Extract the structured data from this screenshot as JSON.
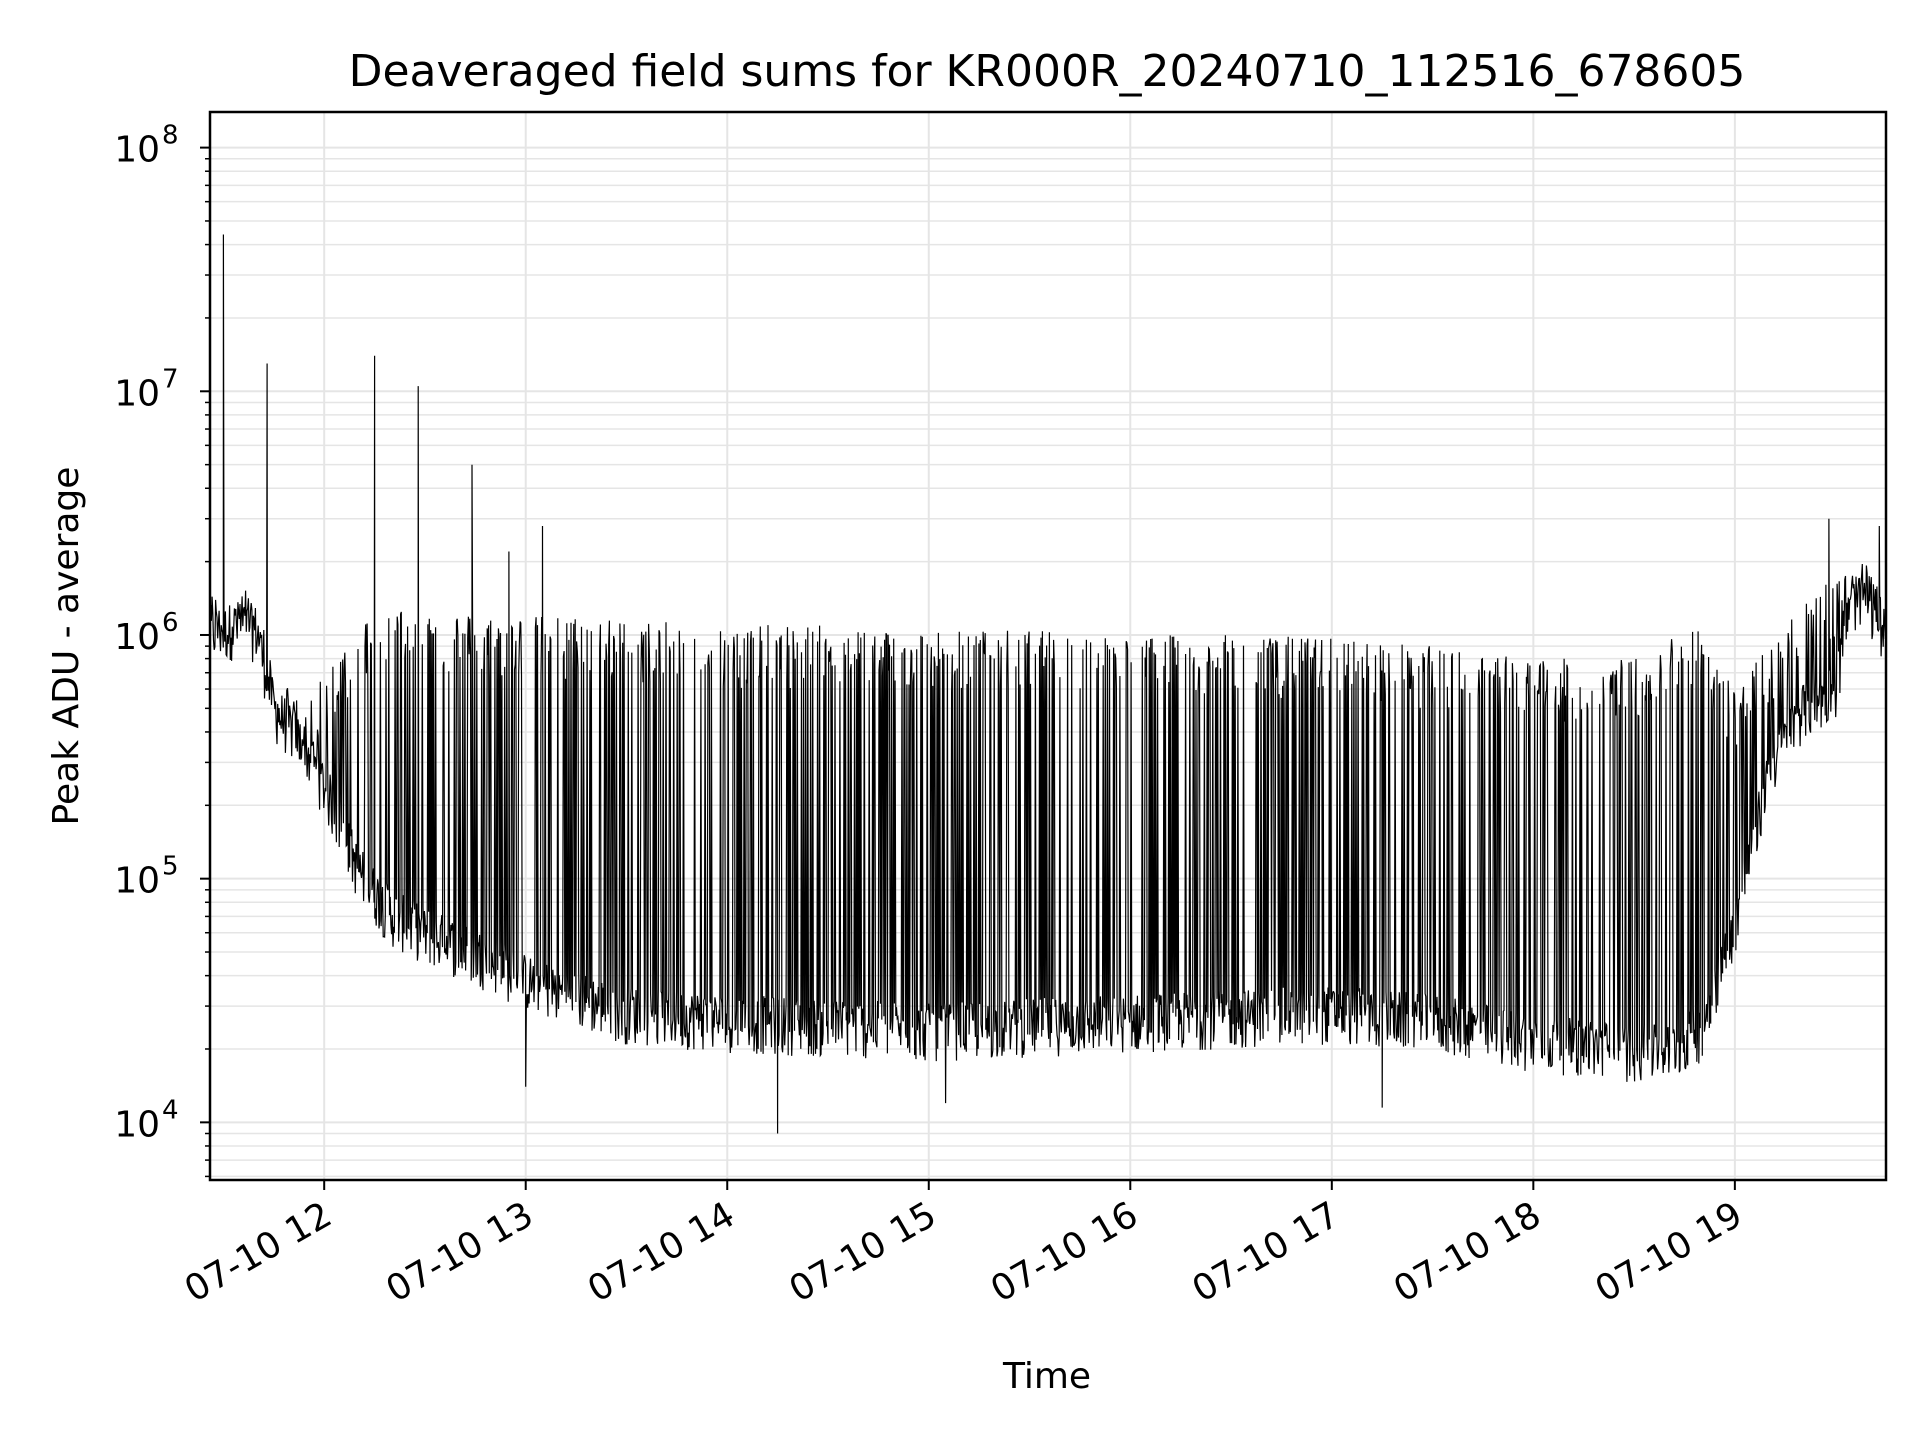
{
  "chart_data": {
    "type": "line",
    "title": "Deaveraged field sums for KR000R_20240710_112516_678605",
    "xlabel": "Time",
    "ylabel": "Peak ADU - average",
    "yscale": "log",
    "ylim": [
      5800,
      140000000
    ],
    "xlim": [
      "07-10 11:26",
      "07-10 19:45"
    ],
    "grid": true,
    "line_color": "#000000",
    "grid_color": "#e5e5e5",
    "x_ticks": [
      {
        "hour": 12,
        "label": "07-10 12"
      },
      {
        "hour": 13,
        "label": "07-10 13"
      },
      {
        "hour": 14,
        "label": "07-10 14"
      },
      {
        "hour": 15,
        "label": "07-10 15"
      },
      {
        "hour": 16,
        "label": "07-10 16"
      },
      {
        "hour": 17,
        "label": "07-10 17"
      },
      {
        "hour": 18,
        "label": "07-10 18"
      },
      {
        "hour": 19,
        "label": "07-10 19"
      }
    ],
    "y_ticks": [
      {
        "value": 10000,
        "base": "10",
        "exp": "4"
      },
      {
        "value": 100000,
        "base": "10",
        "exp": "5"
      },
      {
        "value": 1000000,
        "base": "10",
        "exp": "6"
      },
      {
        "value": 10000000,
        "base": "10",
        "exp": "7"
      },
      {
        "value": 100000000,
        "base": "10",
        "exp": "8"
      }
    ],
    "series": [
      {
        "x": [
          "07-10 11:26",
          "07-10 11:30",
          "07-10 11:35",
          "07-10 11:40",
          "07-10 11:45",
          "07-10 11:50",
          "07-10 11:55",
          "07-10 12:00",
          "07-10 12:05",
          "07-10 12:10",
          "07-10 12:15",
          "07-10 12:20",
          "07-10 12:30",
          "07-10 12:40",
          "07-10 12:50",
          "07-10 13:00",
          "07-10 13:15",
          "07-10 13:30",
          "07-10 14:00",
          "07-10 14:30",
          "07-10 15:00",
          "07-10 15:30",
          "07-10 16:00",
          "07-10 16:30",
          "07-10 17:00",
          "07-10 17:30",
          "07-10 18:00",
          "07-10 18:30",
          "07-10 18:40",
          "07-10 18:50",
          "07-10 19:00",
          "07-10 19:10",
          "07-10 19:20",
          "07-10 19:30",
          "07-10 19:35",
          "07-10 19:40",
          "07-10 19:45"
        ],
        "base": [
          950000,
          950000,
          1000000,
          950000,
          450000,
          380000,
          300000,
          220000,
          150000,
          100000,
          80000,
          65000,
          55000,
          48000,
          42000,
          35000,
          30000,
          26000,
          24000,
          23000,
          22000,
          23000,
          24000,
          25000,
          26000,
          24000,
          20000,
          18000,
          18000,
          22000,
          60000,
          250000,
          450000,
          550000,
          1300000,
          1200000,
          1100000
        ],
        "top": [
          1500000,
          1600000,
          1600000,
          1500000,
          700000,
          600000,
          500000,
          700000,
          900000,
          1100000,
          1300000,
          1300000,
          1300000,
          1250000,
          1200000,
          1200000,
          1200000,
          1150000,
          1100000,
          1100000,
          1050000,
          1050000,
          1000000,
          1000000,
          980000,
          900000,
          800000,
          800000,
          1000000,
          1100000,
          600000,
          900000,
          1500000,
          1800000,
          1900000,
          2000000,
          1200000
        ],
        "spikes": [
          {
            "x": "07-10 11:30",
            "y": 44000000
          },
          {
            "x": "07-10 11:43",
            "y": 13000000
          },
          {
            "x": "07-10 12:15",
            "y": 14000000
          },
          {
            "x": "07-10 12:28",
            "y": 10500000
          },
          {
            "x": "07-10 12:44",
            "y": 5000000
          },
          {
            "x": "07-10 12:55",
            "y": 2200000
          },
          {
            "x": "07-10 13:05",
            "y": 2800000
          },
          {
            "x": "07-10 19:28",
            "y": 3000000
          },
          {
            "x": "07-10 19:43",
            "y": 2800000
          }
        ],
        "dips": [
          {
            "x": "07-10 14:15",
            "y": 9000
          },
          {
            "x": "07-10 13:00",
            "y": 14000
          },
          {
            "x": "07-10 15:05",
            "y": 12000
          },
          {
            "x": "07-10 17:15",
            "y": 11500
          }
        ]
      }
    ]
  }
}
